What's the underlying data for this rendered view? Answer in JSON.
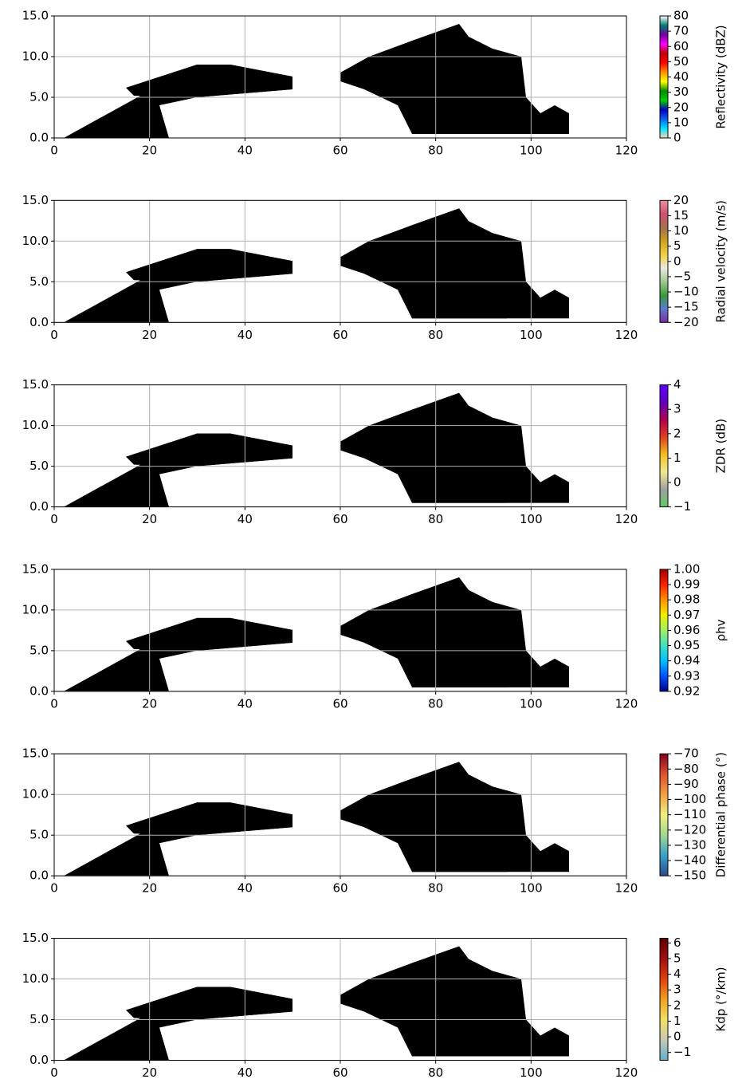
{
  "chart_data": [
    {
      "type": "radar-section",
      "xlim": [
        0,
        120
      ],
      "xticks": [
        0,
        20,
        40,
        60,
        80,
        100,
        120
      ],
      "ylim": [
        0,
        15
      ],
      "yticks": [
        {
          "value": 0,
          "label": "0.0"
        },
        {
          "value": 5,
          "label": "5.0"
        },
        {
          "value": 10,
          "label": "10.0"
        },
        {
          "value": 15,
          "label": "15.0"
        }
      ],
      "grid": true,
      "colorbar": {
        "label": "Reflectivity (dBZ)",
        "lim": [
          0,
          80
        ],
        "ticks": [
          0,
          10,
          20,
          30,
          40,
          50,
          60,
          70,
          80
        ],
        "colors": [
          "#f5d5b8",
          "#00e5ff",
          "#1060f0",
          "#0000c0",
          "#00d000",
          "#008800",
          "#ffff00",
          "#ff9000",
          "#ff0000",
          "#c00000",
          "#ff00ff",
          "#7000a0",
          "#008070",
          "#ffffff"
        ]
      }
    },
    {
      "type": "radar-section",
      "xlim": [
        0,
        120
      ],
      "xticks": [
        0,
        20,
        40,
        60,
        80,
        100,
        120
      ],
      "ylim": [
        0,
        15
      ],
      "yticks": [
        {
          "value": 0,
          "label": "0.0"
        },
        {
          "value": 5,
          "label": "5.0"
        },
        {
          "value": 10,
          "label": "10.0"
        },
        {
          "value": 15,
          "label": "15.0"
        }
      ],
      "grid": true,
      "colorbar": {
        "label": "Radial velocity (m/s)",
        "lim": [
          -20,
          20
        ],
        "ticks": [
          {
            "value": -20,
            "label": "−20"
          },
          {
            "value": -15,
            "label": "−15"
          },
          {
            "value": -10,
            "label": "−10"
          },
          {
            "value": -5,
            "label": "−5"
          },
          0,
          5,
          10,
          15,
          20
        ],
        "colors": [
          "#7b2fa0",
          "#5b7ad0",
          "#3a9a3a",
          "#a0c890",
          "#e8e8e0",
          "#f0d040",
          "#d0a020",
          "#a07050",
          "#d05070",
          "#e890a0"
        ]
      }
    },
    {
      "type": "radar-section",
      "xlim": [
        0,
        120
      ],
      "xticks": [
        0,
        20,
        40,
        60,
        80,
        100,
        120
      ],
      "ylim": [
        0,
        15
      ],
      "yticks": [
        {
          "value": 0,
          "label": "0.0"
        },
        {
          "value": 5,
          "label": "5.0"
        },
        {
          "value": 10,
          "label": "10.0"
        },
        {
          "value": 15,
          "label": "15.0"
        }
      ],
      "grid": true,
      "colorbar": {
        "label": "ZDR (dB)",
        "lim": [
          -1,
          4
        ],
        "ticks": [
          {
            "value": -1,
            "label": "−1"
          },
          0,
          1,
          2,
          3,
          4
        ],
        "colors": [
          "#60c860",
          "#a0a0a0",
          "#f0e890",
          "#f0c020",
          "#e04020",
          "#b00050",
          "#6000c0",
          "#6000ff"
        ]
      }
    },
    {
      "type": "radar-section",
      "xlim": [
        0,
        120
      ],
      "xticks": [
        0,
        20,
        40,
        60,
        80,
        100,
        120
      ],
      "ylim": [
        0,
        15
      ],
      "yticks": [
        {
          "value": 0,
          "label": "0.0"
        },
        {
          "value": 5,
          "label": "5.0"
        },
        {
          "value": 10,
          "label": "10.0"
        },
        {
          "value": 15,
          "label": "15.0"
        }
      ],
      "grid": true,
      "colorbar": {
        "label": "ρhv",
        "lim": [
          0.92,
          1
        ],
        "ticks": [
          0.92,
          0.93,
          0.94,
          0.95,
          0.96,
          0.97,
          0.98,
          0.99,
          {
            "value": 1,
            "label": "1.00"
          }
        ],
        "colors": [
          "#00008b",
          "#0050ff",
          "#00c0ff",
          "#40e0c0",
          "#a0f060",
          "#f0f000",
          "#ff9000",
          "#ff2000",
          "#a00000"
        ]
      }
    },
    {
      "type": "radar-section",
      "xlim": [
        0,
        120
      ],
      "xticks": [
        0,
        20,
        40,
        60,
        80,
        100,
        120
      ],
      "ylim": [
        0,
        15
      ],
      "yticks": [
        {
          "value": 0,
          "label": "0.0"
        },
        {
          "value": 5,
          "label": "5.0"
        },
        {
          "value": 10,
          "label": "10.0"
        },
        {
          "value": 15,
          "label": "15.0"
        }
      ],
      "grid": true,
      "colorbar": {
        "label": "Differential phase (°)",
        "lim": [
          -150,
          -70
        ],
        "ticks": [
          {
            "value": -150,
            "label": "−150"
          },
          {
            "value": -140,
            "label": "−140"
          },
          {
            "value": -130,
            "label": "−130"
          },
          {
            "value": -120,
            "label": "−120"
          },
          {
            "value": -110,
            "label": "−110"
          },
          {
            "value": -100,
            "label": "−100"
          },
          {
            "value": -90,
            "label": "−90"
          },
          {
            "value": -80,
            "label": "−80"
          },
          {
            "value": -70,
            "label": "−70"
          }
        ],
        "colors": [
          "#2a4a8c",
          "#3aa0c8",
          "#a0d890",
          "#f0f080",
          "#f0a040",
          "#e05030",
          "#800020"
        ]
      }
    },
    {
      "type": "radar-section",
      "xlim": [
        0,
        120
      ],
      "xticks": [
        0,
        20,
        40,
        60,
        80,
        100,
        120
      ],
      "ylim": [
        0,
        15
      ],
      "yticks": [
        {
          "value": 0,
          "label": "0.0"
        },
        {
          "value": 5,
          "label": "5.0"
        },
        {
          "value": 10,
          "label": "10.0"
        },
        {
          "value": 15,
          "label": "15.0"
        }
      ],
      "grid": true,
      "colorbar": {
        "label": "Kdp (°/km)",
        "lim": [
          -1.5,
          6.3
        ],
        "ticks": [
          {
            "value": -1,
            "label": "−1"
          },
          0,
          1,
          2,
          3,
          4,
          5,
          6
        ],
        "colors": [
          "#60b0c8",
          "#c8c8b8",
          "#f0e060",
          "#f0a020",
          "#e04010",
          "#a01010",
          "#600000"
        ]
      }
    }
  ]
}
